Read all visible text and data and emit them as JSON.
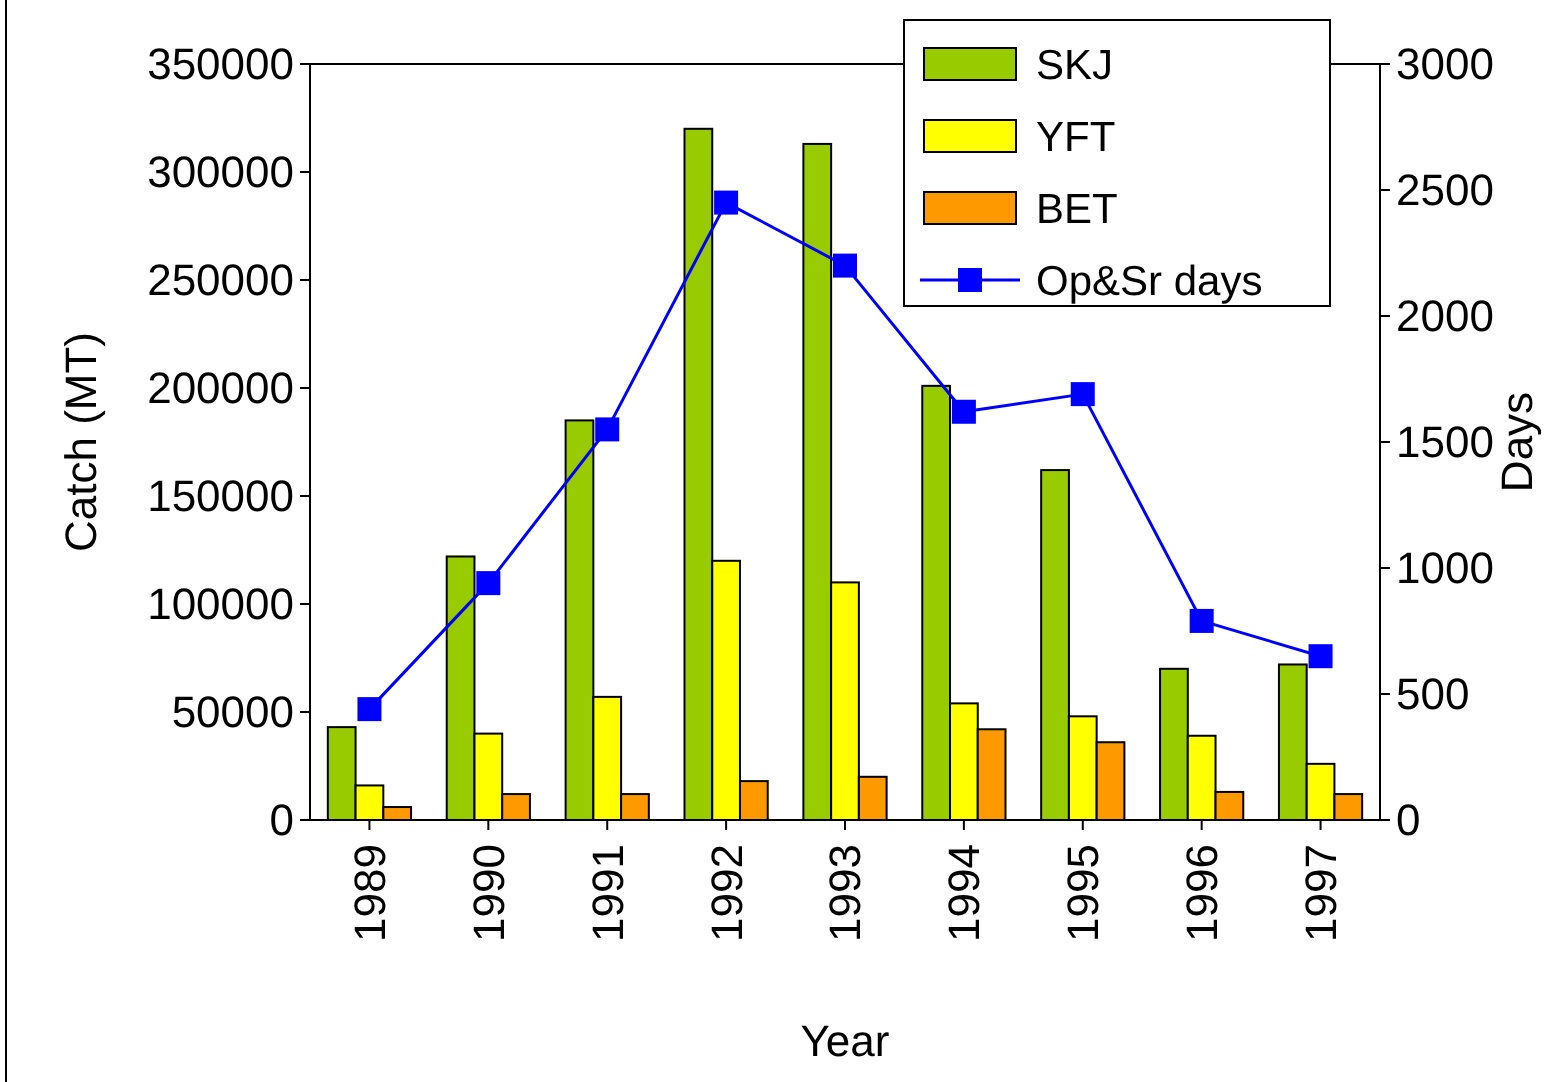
{
  "chart_data": {
    "type": "bar",
    "xlabel": "Year",
    "ylabel": "Catch (MT)",
    "y2label": "Days",
    "categories": [
      "1989",
      "1990",
      "1991",
      "1992",
      "1993",
      "1994",
      "1995",
      "1996",
      "1997"
    ],
    "series": [
      {
        "name": "SKJ",
        "color": "#99cc00",
        "values": [
          43000,
          122000,
          185000,
          320000,
          313000,
          201000,
          162000,
          70000,
          72000
        ]
      },
      {
        "name": "YFT",
        "color": "#ffff00",
        "values": [
          16000,
          40000,
          57000,
          120000,
          110000,
          54000,
          48000,
          39000,
          26000
        ]
      },
      {
        "name": "BET",
        "color": "#ff9900",
        "values": [
          6000,
          12000,
          12000,
          18000,
          20000,
          42000,
          36000,
          13000,
          12000
        ]
      },
      {
        "name": "Op&Sr days",
        "type": "line",
        "axis": "y2",
        "color": "#0000ff",
        "marker": "square",
        "values": [
          440,
          940,
          1550,
          2450,
          2200,
          1620,
          1690,
          790,
          650
        ]
      }
    ],
    "ylim": [
      0,
      350000
    ],
    "yticks": [
      0,
      50000,
      100000,
      150000,
      200000,
      250000,
      300000,
      350000
    ],
    "y2lim": [
      0,
      3000
    ],
    "y2ticks": [
      0,
      500,
      1000,
      1500,
      2000,
      2500,
      3000
    ],
    "grid": false,
    "legend": "top right"
  }
}
